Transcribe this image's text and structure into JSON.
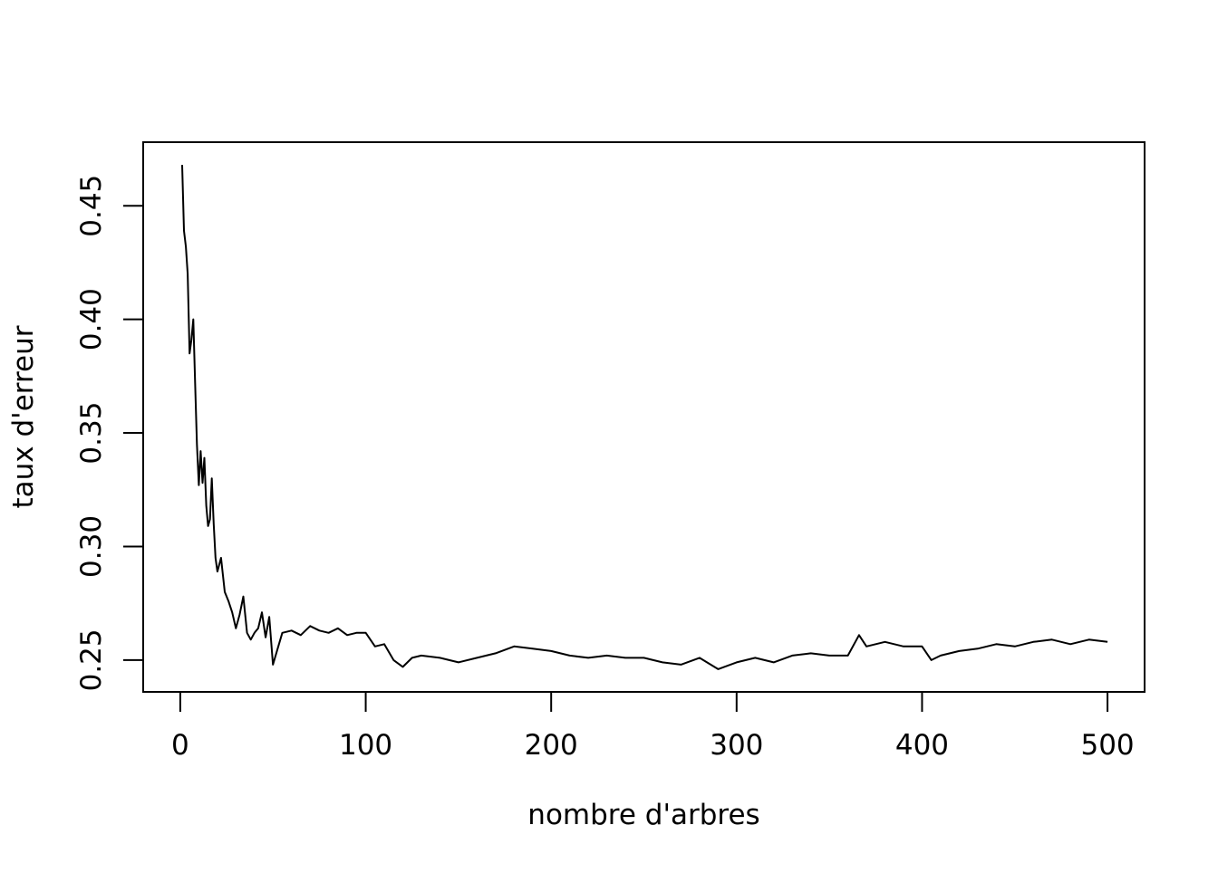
{
  "chart_data": {
    "type": "line",
    "title": "",
    "xlabel": "nombre d'arbres",
    "ylabel": "taux d'erreur",
    "xlim": [
      -20,
      520
    ],
    "ylim": [
      0.236,
      0.478
    ],
    "xticks": [
      0,
      100,
      200,
      300,
      400,
      500
    ],
    "xtick_labels": [
      "0",
      "100",
      "200",
      "300",
      "400",
      "500"
    ],
    "yticks": [
      0.25,
      0.3,
      0.35,
      0.4,
      0.45
    ],
    "ytick_labels": [
      "0.25",
      "0.30",
      "0.35",
      "0.40",
      "0.45"
    ],
    "grid": false,
    "legend": "none",
    "line_color": "#000000",
    "series": [
      {
        "x": [
          1,
          2,
          3,
          4,
          5,
          6,
          7,
          8,
          9,
          10,
          11,
          12,
          13,
          14,
          15,
          16,
          17,
          18,
          19,
          20,
          22,
          24,
          26,
          28,
          30,
          32,
          34,
          36,
          38,
          40,
          42,
          44,
          46,
          48,
          50,
          55,
          60,
          65,
          70,
          75,
          80,
          85,
          90,
          95,
          100,
          105,
          110,
          115,
          120,
          125,
          130,
          140,
          150,
          160,
          170,
          180,
          190,
          200,
          210,
          220,
          230,
          240,
          250,
          260,
          270,
          280,
          290,
          300,
          310,
          320,
          330,
          340,
          350,
          360,
          366,
          370,
          380,
          390,
          400,
          405,
          410,
          420,
          430,
          440,
          450,
          460,
          470,
          480,
          490,
          500
        ],
        "y": [
          0.468,
          0.439,
          0.432,
          0.42,
          0.385,
          0.391,
          0.4,
          0.372,
          0.345,
          0.327,
          0.342,
          0.328,
          0.339,
          0.318,
          0.309,
          0.312,
          0.33,
          0.31,
          0.295,
          0.289,
          0.295,
          0.28,
          0.276,
          0.271,
          0.264,
          0.27,
          0.278,
          0.262,
          0.259,
          0.262,
          0.264,
          0.271,
          0.26,
          0.269,
          0.248,
          0.262,
          0.263,
          0.261,
          0.265,
          0.263,
          0.262,
          0.264,
          0.261,
          0.262,
          0.262,
          0.256,
          0.257,
          0.25,
          0.247,
          0.251,
          0.252,
          0.251,
          0.249,
          0.251,
          0.253,
          0.256,
          0.255,
          0.254,
          0.252,
          0.251,
          0.252,
          0.251,
          0.251,
          0.249,
          0.248,
          0.251,
          0.246,
          0.249,
          0.251,
          0.249,
          0.252,
          0.253,
          0.252,
          0.252,
          0.261,
          0.256,
          0.258,
          0.256,
          0.256,
          0.25,
          0.252,
          0.254,
          0.255,
          0.257,
          0.256,
          0.258,
          0.259,
          0.257,
          0.259,
          0.258
        ]
      }
    ]
  }
}
